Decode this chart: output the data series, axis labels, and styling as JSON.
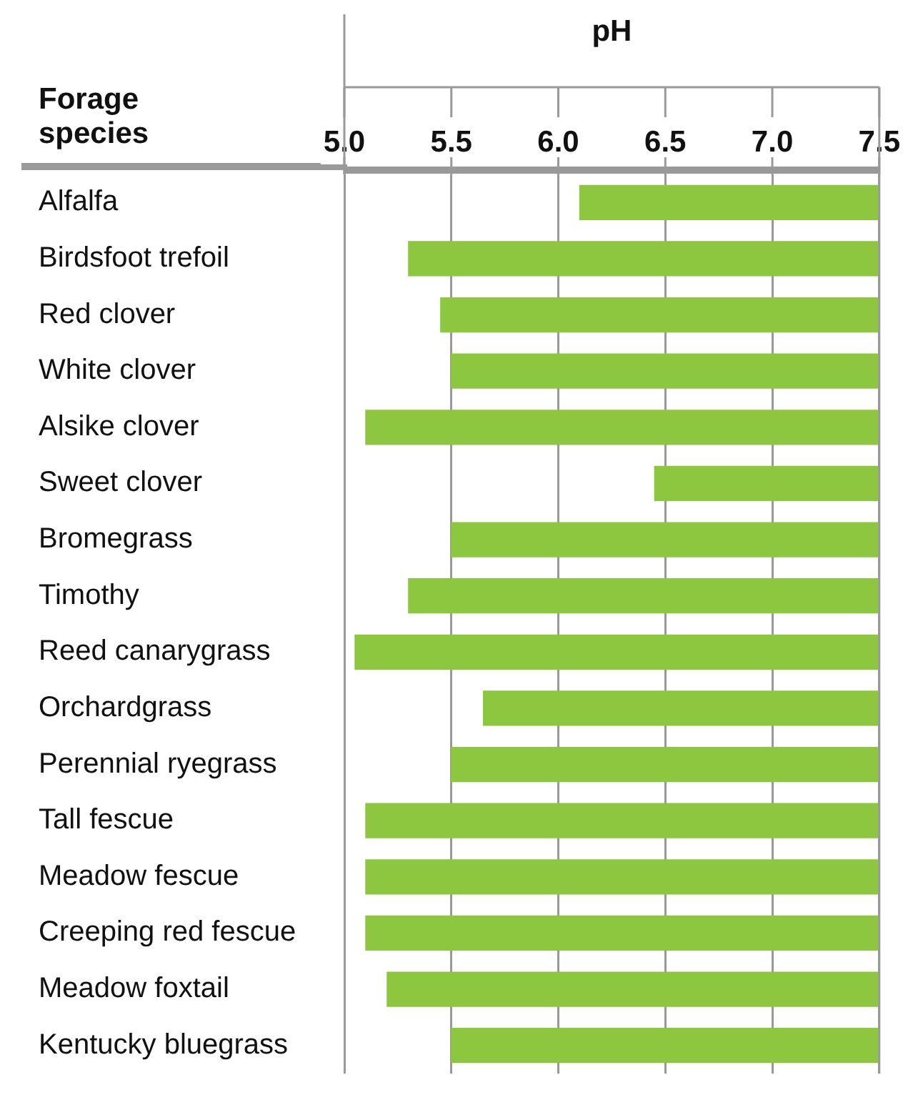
{
  "chart_data": {
    "type": "bar",
    "orientation": "horizontal",
    "xlabel": "pH",
    "ylabel": "Forage species",
    "categories": [
      "Alfalfa",
      "Birdsfoot trefoil",
      "Red clover",
      "White clover",
      "Alsike clover",
      "Sweet clover",
      "Bromegrass",
      "Timothy",
      "Reed canarygrass",
      "Orchardgrass",
      "Perennial ryegrass",
      "Tall fescue",
      "Meadow fescue",
      "Creeping red fescue",
      "Meadow foxtail",
      "Kentucky bluegrass"
    ],
    "base": [
      6.1,
      5.3,
      5.45,
      5.5,
      5.1,
      6.45,
      5.5,
      5.3,
      5.05,
      5.65,
      5.5,
      5.1,
      5.1,
      5.1,
      5.2,
      5.5
    ],
    "values": [
      1.4,
      2.2,
      2.05,
      2.0,
      2.4,
      1.05,
      2.0,
      2.2,
      2.45,
      1.85,
      2.0,
      2.4,
      2.4,
      2.4,
      2.3,
      2.0
    ],
    "color": "#8dc63f",
    "xlim": [
      5.0,
      7.5
    ],
    "xticks": [
      {
        "value": 5,
        "label": "5.0"
      },
      {
        "value": 5.5,
        "label": "5.5"
      },
      {
        "value": 6,
        "label": "6.0"
      },
      {
        "value": 6.5,
        "label": "6.5"
      },
      {
        "value": 7,
        "label": "7.0"
      },
      {
        "value": 7.5,
        "label": "7.5"
      }
    ],
    "grid": "x"
  }
}
